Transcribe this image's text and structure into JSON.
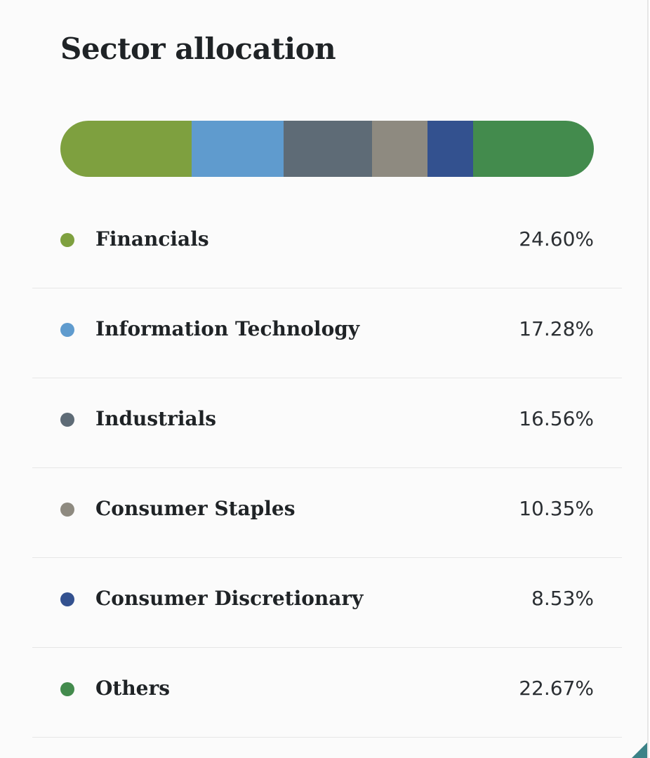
{
  "card": {
    "title": "Sector allocation"
  },
  "chart_data": {
    "type": "bar",
    "orientation": "stacked-horizontal",
    "title": "Sector allocation",
    "unit": "%",
    "categories": [
      "Financials",
      "Information Technology",
      "Industrials",
      "Consumer Staples",
      "Consumer Discretionary",
      "Others"
    ],
    "values": [
      24.6,
      17.28,
      16.56,
      10.35,
      8.53,
      22.67
    ],
    "labels": [
      "24.60%",
      "17.28%",
      "16.56%",
      "10.35%",
      "8.53%",
      "22.67%"
    ],
    "colors": [
      "#7ea03f",
      "#5f9bce",
      "#5e6b76",
      "#8e8a80",
      "#33518f",
      "#438b4d"
    ],
    "legend_position": "below"
  }
}
